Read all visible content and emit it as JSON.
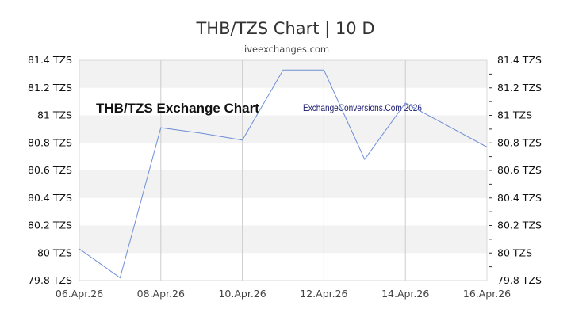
{
  "header": {
    "title": "THB/TZS Chart | 10 D",
    "subtitle": "liveexchanges.com"
  },
  "watermarks": {
    "left": "THB/TZS Exchange Chart",
    "right": "ExchangeConversions.Com 2026"
  },
  "colors": {
    "line": "#6f8fd6",
    "band": "#f2f2f2",
    "grid": "#cccccc"
  },
  "y_ticks": [
    "81.4 TZS",
    "81.2 TZS",
    "81 TZS",
    "80.8 TZS",
    "80.6 TZS",
    "80.4 TZS",
    "80.2 TZS",
    "80 TZS",
    "79.8 TZS"
  ],
  "x_ticks": [
    "06.Apr.26",
    "08.Apr.26",
    "10.Apr.26",
    "12.Apr.26",
    "14.Apr.26",
    "16.Apr.26"
  ],
  "chart_data": {
    "type": "line",
    "title": "THB/TZS Chart | 10 D",
    "subtitle": "liveexchanges.com",
    "xlabel": "",
    "ylabel": "TZS",
    "x": [
      "06.Apr.26",
      "07.Apr.26",
      "08.Apr.26",
      "09.Apr.26",
      "10.Apr.26",
      "11.Apr.26",
      "12.Apr.26",
      "13.Apr.26",
      "14.Apr.26",
      "15.Apr.26",
      "16.Apr.26"
    ],
    "series": [
      {
        "name": "THB/TZS",
        "values": [
          80.03,
          79.82,
          80.91,
          80.87,
          80.82,
          81.33,
          81.33,
          80.68,
          81.09,
          80.93,
          80.77
        ]
      }
    ],
    "ylim": [
      79.8,
      81.4
    ],
    "y_tick_step": 0.2,
    "grid": true,
    "legend": "none",
    "annotations": [
      "THB/TZS Exchange Chart",
      "ExchangeConversions.Com 2026"
    ]
  }
}
